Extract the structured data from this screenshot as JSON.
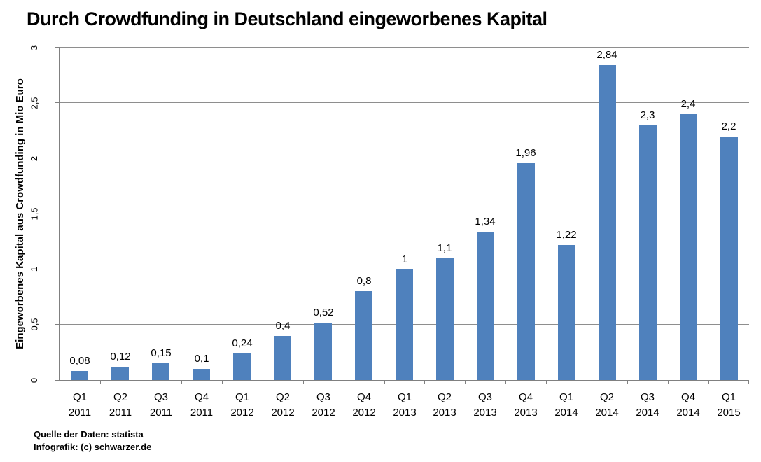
{
  "chart_data": {
    "type": "bar",
    "title": "Durch Crowdfunding in Deutschland eingeworbenes Kapital",
    "ylabel": "Eingeworbenes Kapital aus Crowdfunding in Mio Euro",
    "xlabel": "",
    "categories": [
      {
        "quarter": "Q1",
        "year": "2011"
      },
      {
        "quarter": "Q2",
        "year": "2011"
      },
      {
        "quarter": "Q3",
        "year": "2011"
      },
      {
        "quarter": "Q4",
        "year": "2011"
      },
      {
        "quarter": "Q1",
        "year": "2012"
      },
      {
        "quarter": "Q2",
        "year": "2012"
      },
      {
        "quarter": "Q3",
        "year": "2012"
      },
      {
        "quarter": "Q4",
        "year": "2012"
      },
      {
        "quarter": "Q1",
        "year": "2013"
      },
      {
        "quarter": "Q2",
        "year": "2013"
      },
      {
        "quarter": "Q3",
        "year": "2013"
      },
      {
        "quarter": "Q4",
        "year": "2013"
      },
      {
        "quarter": "Q1",
        "year": "2014"
      },
      {
        "quarter": "Q2",
        "year": "2014"
      },
      {
        "quarter": "Q3",
        "year": "2014"
      },
      {
        "quarter": "Q4",
        "year": "2014"
      },
      {
        "quarter": "Q1",
        "year": "2015"
      }
    ],
    "values": [
      0.08,
      0.12,
      0.15,
      0.1,
      0.24,
      0.4,
      0.52,
      0.8,
      1,
      1.1,
      1.34,
      1.96,
      1.22,
      2.84,
      2.3,
      2.4,
      2.2
    ],
    "value_labels": [
      "0,08",
      "0,12",
      "0,15",
      "0,1",
      "0,24",
      "0,4",
      "0,52",
      "0,8",
      "1",
      "1,1",
      "1,34",
      "1,96",
      "1,22",
      "2,84",
      "2,3",
      "2,4",
      "2,2"
    ],
    "ylim": [
      0,
      3
    ],
    "y_ticks": [
      {
        "value": 0,
        "label": "0"
      },
      {
        "value": 0.5,
        "label": "0,5"
      },
      {
        "value": 1,
        "label": "1"
      },
      {
        "value": 1.5,
        "label": "1,5"
      },
      {
        "value": 2,
        "label": "2"
      },
      {
        "value": 2.5,
        "label": "2,5"
      },
      {
        "value": 3,
        "label": "3"
      }
    ],
    "grid": true,
    "legend_position": "none",
    "colors": {
      "bar": "#4f81bd",
      "gridline": "#8e8e8e",
      "axis": "#808080",
      "text": "#000000"
    }
  },
  "footer": {
    "source_line": "Quelle der Daten: statista",
    "credit_line": "Infografik: (c) schwarzer.de"
  }
}
